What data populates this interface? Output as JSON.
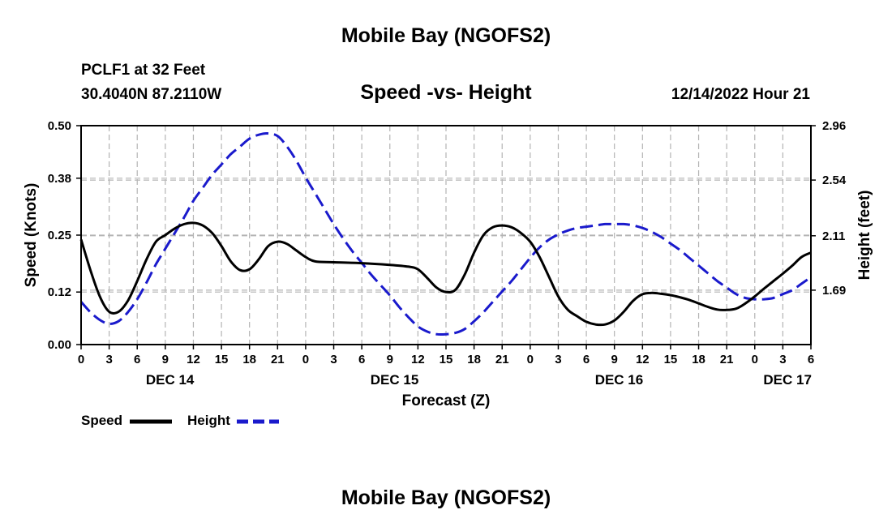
{
  "header": {
    "title": "Mobile Bay (NGOFS2)",
    "station": "PCLF1 at 32 Feet",
    "coords": "30.4040N  87.2110W",
    "subtitle": "Speed -vs- Height",
    "datetime": "12/14/2022 Hour 21"
  },
  "footer": {
    "title": "Mobile Bay (NGOFS2)"
  },
  "colors": {
    "speed": "#000000",
    "height": "#1a1acc",
    "grid": "#b4b4b4"
  },
  "chart_data": {
    "type": "line",
    "xlabel": "Forecast (Z)",
    "ylabel": "Speed (Knots)",
    "y2label": "Height (feet)",
    "x_hours_range": [
      0,
      78
    ],
    "ylim": [
      0,
      0.5
    ],
    "y2lim": [
      1.27,
      2.96
    ],
    "yticks": [
      "0.00",
      "0.12",
      "0.25",
      "0.38",
      "0.50"
    ],
    "y2ticks": [
      "1.69",
      "2.11",
      "2.54",
      "2.96"
    ],
    "y2tick_values": [
      1.69,
      2.11,
      2.54,
      2.96
    ],
    "xtick_labels": [
      "0",
      "3",
      "6",
      "9",
      "12",
      "15",
      "18",
      "21",
      "0",
      "3",
      "6",
      "9",
      "12",
      "15",
      "18",
      "21",
      "0",
      "3",
      "6",
      "9",
      "12",
      "15",
      "18",
      "21",
      "0",
      "3",
      "6"
    ],
    "date_labels": [
      {
        "label": "DEC 14",
        "hour": 9.5
      },
      {
        "label": "DEC 15",
        "hour": 33.5
      },
      {
        "label": "DEC 16",
        "hour": 57.5
      },
      {
        "label": "DEC 17",
        "hour": 75.5
      }
    ],
    "series": [
      {
        "name": "Speed",
        "axis": "left",
        "style": "solid",
        "points": [
          [
            0,
            0.24
          ],
          [
            1,
            0.17
          ],
          [
            2,
            0.11
          ],
          [
            3,
            0.075
          ],
          [
            4,
            0.075
          ],
          [
            5,
            0.1
          ],
          [
            6,
            0.145
          ],
          [
            7,
            0.195
          ],
          [
            8,
            0.235
          ],
          [
            9,
            0.25
          ],
          [
            10,
            0.265
          ],
          [
            11,
            0.275
          ],
          [
            12,
            0.278
          ],
          [
            13,
            0.272
          ],
          [
            14,
            0.255
          ],
          [
            15,
            0.225
          ],
          [
            16,
            0.19
          ],
          [
            17,
            0.17
          ],
          [
            18,
            0.172
          ],
          [
            19,
            0.195
          ],
          [
            20,
            0.225
          ],
          [
            21,
            0.235
          ],
          [
            22,
            0.23
          ],
          [
            23,
            0.215
          ],
          [
            24,
            0.2
          ],
          [
            25,
            0.19
          ],
          [
            27,
            0.188
          ],
          [
            30,
            0.186
          ],
          [
            33,
            0.182
          ],
          [
            35,
            0.178
          ],
          [
            36,
            0.172
          ],
          [
            37,
            0.152
          ],
          [
            38,
            0.13
          ],
          [
            39,
            0.12
          ],
          [
            40,
            0.125
          ],
          [
            41,
            0.16
          ],
          [
            42,
            0.21
          ],
          [
            43,
            0.25
          ],
          [
            44,
            0.268
          ],
          [
            45,
            0.272
          ],
          [
            46,
            0.268
          ],
          [
            47,
            0.255
          ],
          [
            48,
            0.235
          ],
          [
            49,
            0.2
          ],
          [
            50,
            0.155
          ],
          [
            51,
            0.11
          ],
          [
            52,
            0.08
          ],
          [
            53,
            0.065
          ],
          [
            54,
            0.052
          ],
          [
            55,
            0.046
          ],
          [
            56,
            0.046
          ],
          [
            57,
            0.055
          ],
          [
            58,
            0.075
          ],
          [
            59,
            0.1
          ],
          [
            60,
            0.115
          ],
          [
            61,
            0.118
          ],
          [
            62,
            0.116
          ],
          [
            63,
            0.113
          ],
          [
            64,
            0.108
          ],
          [
            65,
            0.102
          ],
          [
            66,
            0.094
          ],
          [
            67,
            0.086
          ],
          [
            68,
            0.08
          ],
          [
            69,
            0.079
          ],
          [
            70,
            0.082
          ],
          [
            71,
            0.094
          ],
          [
            72,
            0.11
          ],
          [
            73,
            0.128
          ],
          [
            74,
            0.145
          ],
          [
            75,
            0.162
          ],
          [
            76,
            0.18
          ],
          [
            77,
            0.2
          ],
          [
            78,
            0.21
          ]
        ]
      },
      {
        "name": "Height",
        "axis": "right",
        "style": "dashed",
        "points": [
          [
            0,
            1.6
          ],
          [
            1,
            1.52
          ],
          [
            2,
            1.46
          ],
          [
            3,
            1.43
          ],
          [
            4,
            1.45
          ],
          [
            5,
            1.52
          ],
          [
            6,
            1.62
          ],
          [
            7,
            1.75
          ],
          [
            8,
            1.89
          ],
          [
            9,
            2.01
          ],
          [
            10,
            2.13
          ],
          [
            11,
            2.25
          ],
          [
            12,
            2.38
          ],
          [
            13,
            2.48
          ],
          [
            14,
            2.58
          ],
          [
            15,
            2.66
          ],
          [
            16,
            2.74
          ],
          [
            17,
            2.8
          ],
          [
            18,
            2.86
          ],
          [
            19,
            2.89
          ],
          [
            20,
            2.9
          ],
          [
            21,
            2.88
          ],
          [
            22,
            2.8
          ],
          [
            23,
            2.69
          ],
          [
            24,
            2.56
          ],
          [
            25,
            2.44
          ],
          [
            26,
            2.32
          ],
          [
            27,
            2.2
          ],
          [
            28,
            2.09
          ],
          [
            29,
            1.99
          ],
          [
            30,
            1.9
          ],
          [
            31,
            1.81
          ],
          [
            32,
            1.73
          ],
          [
            33,
            1.65
          ],
          [
            34,
            1.56
          ],
          [
            35,
            1.48
          ],
          [
            36,
            1.41
          ],
          [
            37,
            1.37
          ],
          [
            38,
            1.35
          ],
          [
            39,
            1.35
          ],
          [
            40,
            1.36
          ],
          [
            41,
            1.39
          ],
          [
            42,
            1.45
          ],
          [
            43,
            1.52
          ],
          [
            44,
            1.6
          ],
          [
            45,
            1.68
          ],
          [
            46,
            1.76
          ],
          [
            47,
            1.85
          ],
          [
            48,
            1.94
          ],
          [
            49,
            2.02
          ],
          [
            50,
            2.08
          ],
          [
            51,
            2.12
          ],
          [
            52,
            2.15
          ],
          [
            53,
            2.17
          ],
          [
            54,
            2.18
          ],
          [
            55,
            2.19
          ],
          [
            56,
            2.2
          ],
          [
            57,
            2.2
          ],
          [
            58,
            2.2
          ],
          [
            59,
            2.19
          ],
          [
            60,
            2.17
          ],
          [
            61,
            2.14
          ],
          [
            62,
            2.1
          ],
          [
            63,
            2.05
          ],
          [
            64,
            2.0
          ],
          [
            65,
            1.94
          ],
          [
            66,
            1.88
          ],
          [
            67,
            1.82
          ],
          [
            68,
            1.76
          ],
          [
            69,
            1.71
          ],
          [
            70,
            1.66
          ],
          [
            71,
            1.63
          ],
          [
            72,
            1.62
          ],
          [
            73,
            1.62
          ],
          [
            74,
            1.63
          ],
          [
            75,
            1.66
          ],
          [
            76,
            1.69
          ],
          [
            77,
            1.74
          ],
          [
            78,
            1.79
          ]
        ]
      }
    ],
    "legend": [
      {
        "label": "Speed",
        "style": "solid"
      },
      {
        "label": "Height",
        "style": "dashed"
      }
    ]
  }
}
